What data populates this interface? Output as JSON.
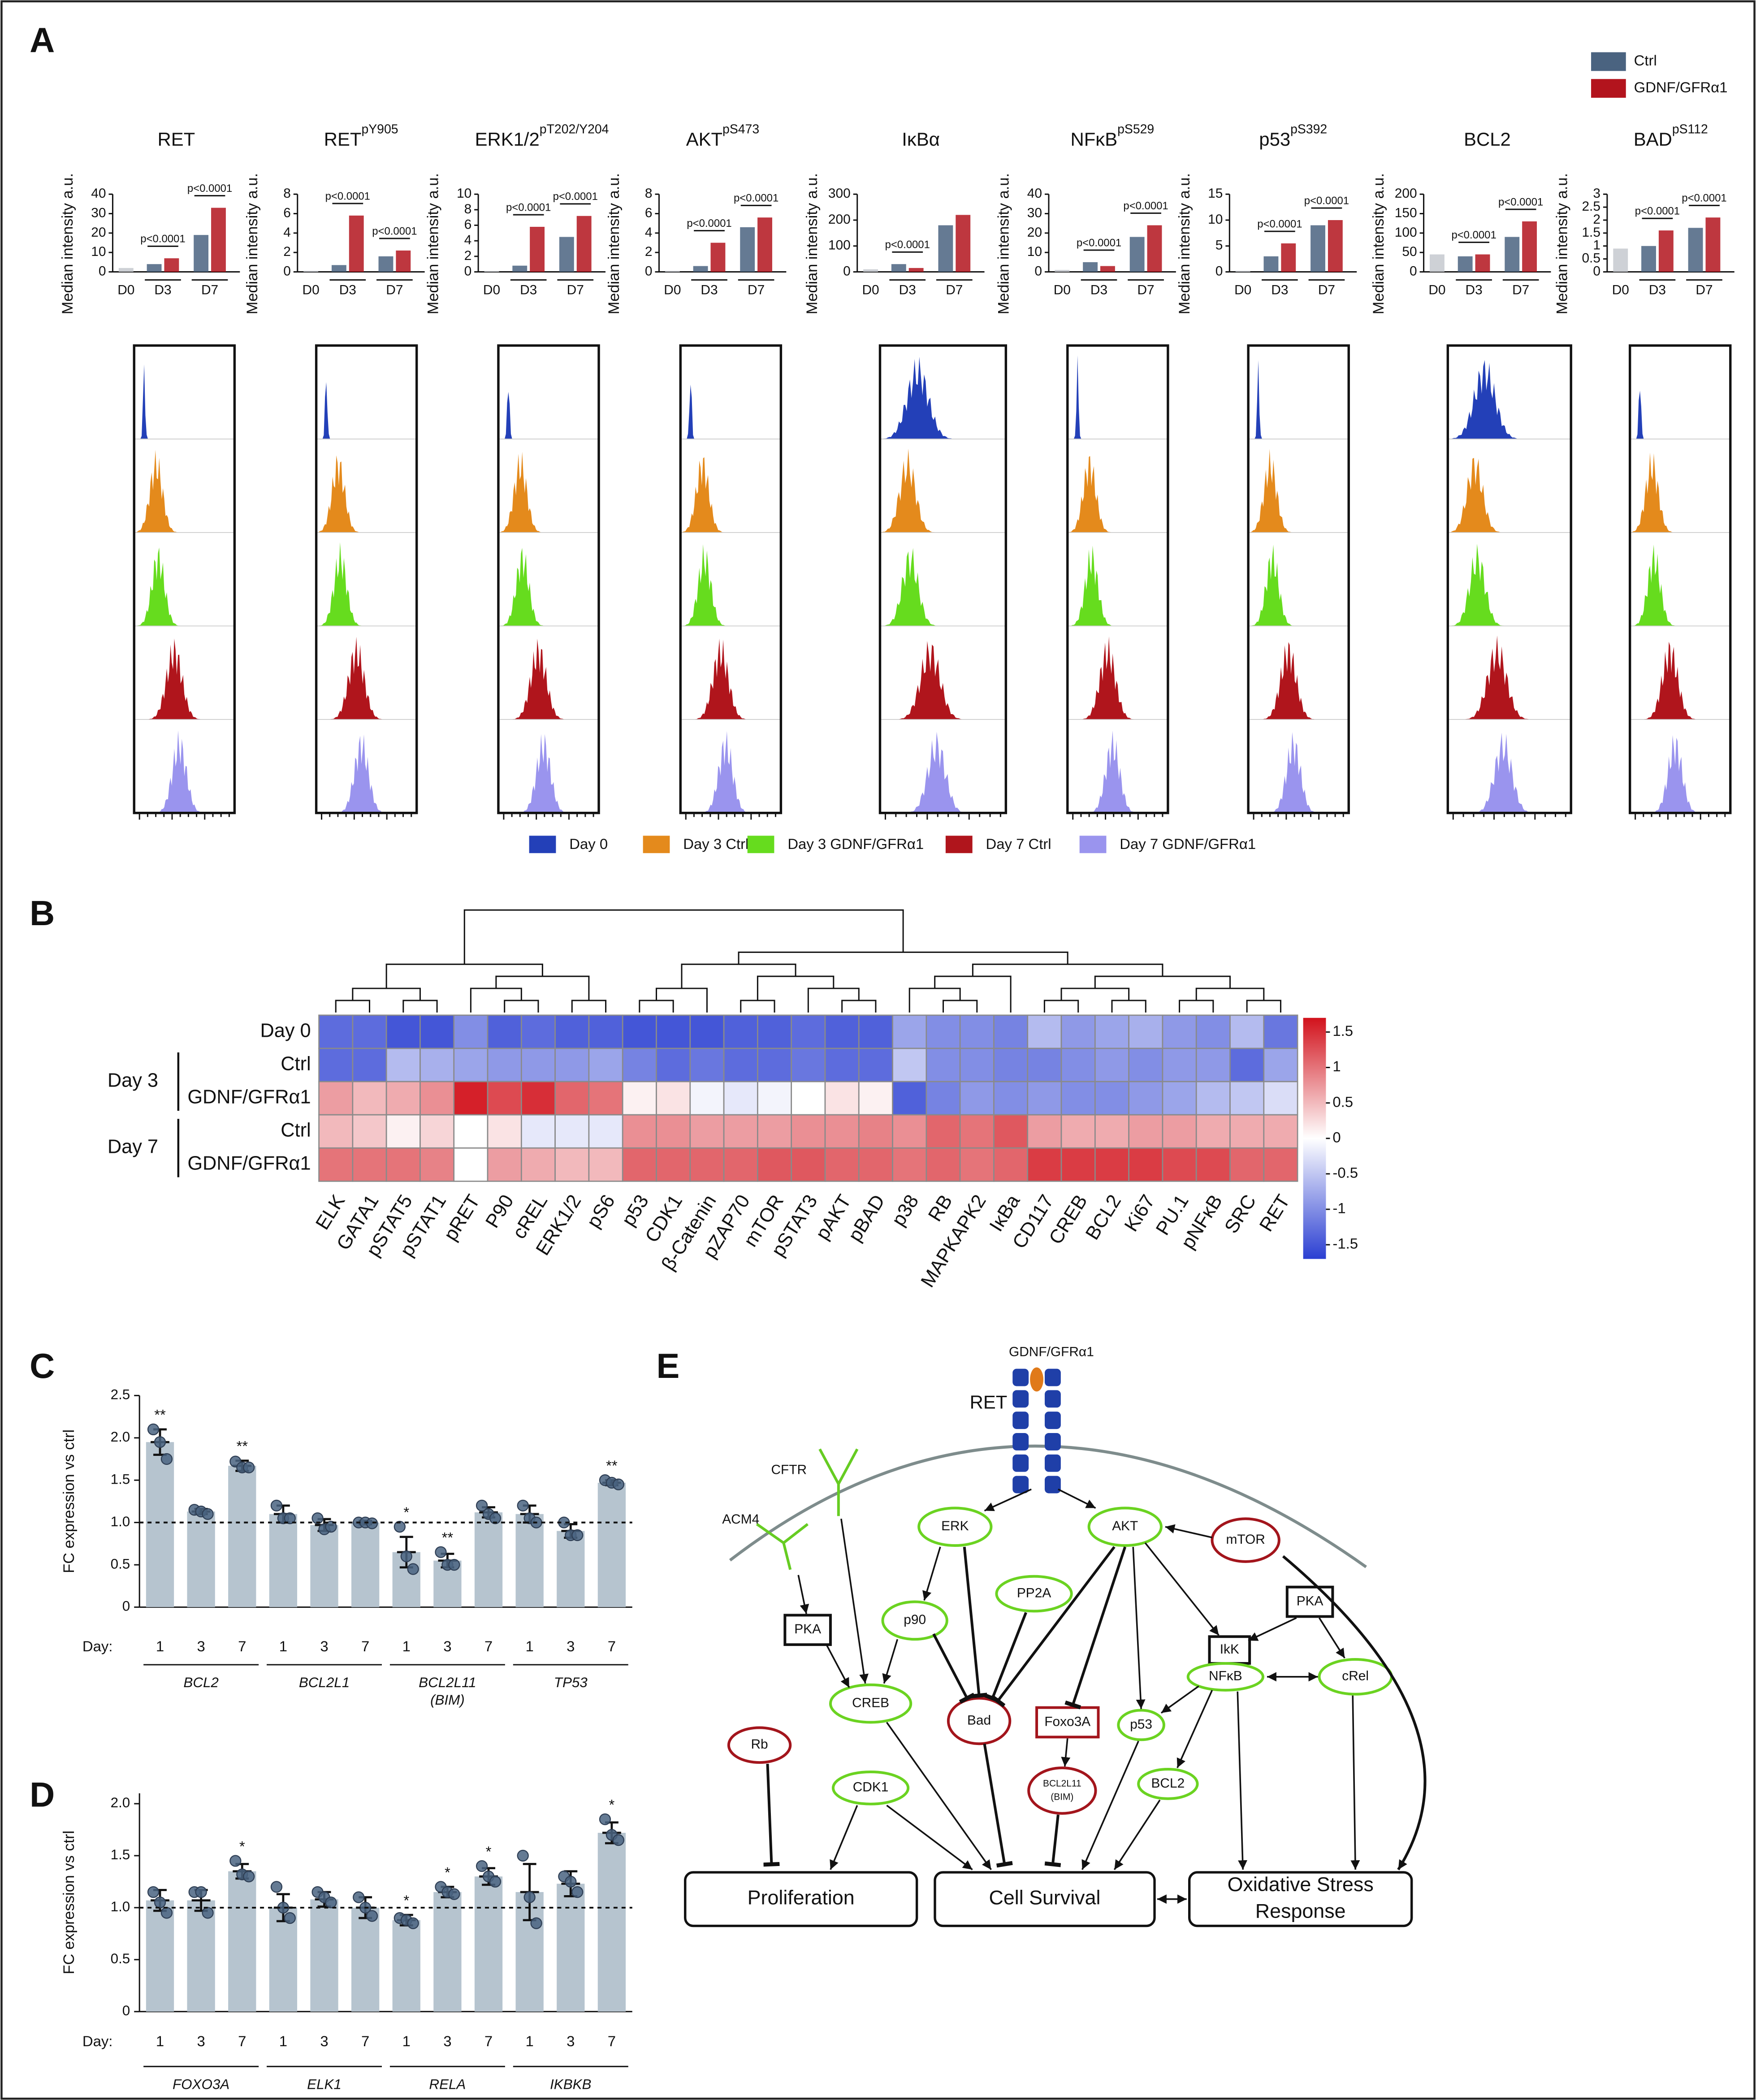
{
  "panel_labels": [
    "A",
    "B",
    "C",
    "D",
    "E"
  ],
  "legend_a": [
    {
      "name": "Ctrl",
      "color": "#4a6380"
    },
    {
      "name": "GDNF/GFRα1",
      "color": "#b3141d"
    }
  ],
  "histogram_legend": [
    {
      "name": "Day 0",
      "color": "#2340b8"
    },
    {
      "name": "Day 3 Ctrl",
      "color": "#e48a1c"
    },
    {
      "name": "Day 3 GDNF/GFRα1",
      "color": "#66dc1e"
    },
    {
      "name": "Day 7 Ctrl",
      "color": "#b0151c"
    },
    {
      "name": "Day 7 GDNF/GFRα1",
      "color": "#9a94ee"
    }
  ],
  "chart_data": [
    {
      "type": "grouped_bar",
      "title": "RET",
      "ylabel": "Median intensity a.u.",
      "categories": [
        "D0",
        "D3",
        "D7"
      ],
      "d0_color": "#c5c9cf",
      "series": [
        {
          "color": "#4a6380",
          "values": [
            2,
            4,
            19
          ]
        },
        {
          "color": "#b3141d",
          "values": [
            null,
            7,
            33
          ]
        }
      ],
      "ylim": [
        0,
        40
      ],
      "yticks": [
        0,
        10,
        20,
        30,
        40
      ],
      "annotations": [
        "p<0.0001",
        "p<0.0001"
      ]
    },
    {
      "type": "grouped_bar",
      "title": "RET",
      "title_sup": "pY905",
      "ylabel": "Median intensity a.u.",
      "categories": [
        "D0",
        "D3",
        "D7"
      ],
      "d0_color": "#c5c9cf",
      "series": [
        {
          "color": "#4a6380",
          "values": [
            0.1,
            0.7,
            1.6
          ]
        },
        {
          "color": "#b3141d",
          "values": [
            null,
            5.8,
            2.2
          ]
        }
      ],
      "ylim": [
        0,
        8
      ],
      "yticks": [
        0,
        2,
        4,
        6,
        8
      ],
      "annotations": [
        "p<0.0001",
        "p<0.0001"
      ]
    },
    {
      "type": "grouped_bar",
      "title": "ERK1/2",
      "title_sup": "pT202/Y204",
      "ylabel": "Median intensity a.u.",
      "categories": [
        "D0",
        "D3",
        "D7"
      ],
      "d0_color": "#c5c9cf",
      "series": [
        {
          "color": "#4a6380",
          "values": [
            0.1,
            0.8,
            4.5
          ]
        },
        {
          "color": "#b3141d",
          "values": [
            null,
            5.8,
            7.2
          ]
        }
      ],
      "ylim": [
        0,
        10
      ],
      "yticks": [
        0,
        2,
        4,
        6,
        8,
        10
      ],
      "annotations": [
        "p<0.0001",
        "p<0.0001"
      ]
    },
    {
      "type": "grouped_bar",
      "title": "AKT",
      "title_sup": "pS473",
      "ylabel": "Median intensity a.u.",
      "categories": [
        "D0",
        "D3",
        "D7"
      ],
      "d0_color": "#c5c9cf",
      "series": [
        {
          "color": "#4a6380",
          "values": [
            0.1,
            0.6,
            4.6
          ]
        },
        {
          "color": "#b3141d",
          "values": [
            null,
            3.0,
            5.6
          ]
        }
      ],
      "ylim": [
        0,
        8
      ],
      "yticks": [
        0,
        2,
        4,
        6,
        8
      ],
      "annotations": [
        "p<0.0001",
        "p<0.0001"
      ]
    },
    {
      "type": "grouped_bar",
      "title": "IκBα",
      "ylabel": "Median intensity a.u.",
      "categories": [
        "D0",
        "D3",
        "D7"
      ],
      "d0_color": "#c5c9cf",
      "series": [
        {
          "color": "#4a6380",
          "values": [
            10,
            30,
            180
          ]
        },
        {
          "color": "#b3141d",
          "values": [
            null,
            15,
            220
          ]
        }
      ],
      "ylim": [
        0,
        300
      ],
      "yticks": [
        0,
        100,
        200,
        300
      ],
      "annotations": [
        "p<0.0001"
      ]
    },
    {
      "type": "grouped_bar",
      "title": "NFκB",
      "title_sup": "pS529",
      "ylabel": "Median intensity a.u.",
      "categories": [
        "D0",
        "D3",
        "D7"
      ],
      "d0_color": "#c5c9cf",
      "series": [
        {
          "color": "#4a6380",
          "values": [
            1,
            5,
            18
          ]
        },
        {
          "color": "#b3141d",
          "values": [
            null,
            3,
            24
          ]
        }
      ],
      "ylim": [
        0,
        40
      ],
      "yticks": [
        0,
        10,
        20,
        30,
        40
      ],
      "annotations": [
        "p<0.0001",
        "p<0.0001"
      ]
    },
    {
      "type": "grouped_bar",
      "title": "p53",
      "title_sup": "pS392",
      "ylabel": "Median intensity a.u.",
      "categories": [
        "D0",
        "D3",
        "D7"
      ],
      "d0_color": "#c5c9cf",
      "series": [
        {
          "color": "#4a6380",
          "values": [
            0.2,
            3,
            9
          ]
        },
        {
          "color": "#b3141d",
          "values": [
            null,
            5.5,
            10
          ]
        }
      ],
      "ylim": [
        0,
        15
      ],
      "yticks": [
        0,
        5,
        10,
        15
      ],
      "annotations": [
        "p<0.0001",
        "p<0.0001"
      ]
    },
    {
      "type": "grouped_bar",
      "title": "BCL2",
      "ylabel": "Median intensity a.u.",
      "categories": [
        "D0",
        "D3",
        "D7"
      ],
      "d0_color": "#c5c9cf",
      "series": [
        {
          "color": "#4a6380",
          "values": [
            45,
            40,
            90
          ]
        },
        {
          "color": "#b3141d",
          "values": [
            null,
            45,
            130
          ]
        }
      ],
      "ylim": [
        0,
        200
      ],
      "yticks": [
        0,
        50,
        100,
        150,
        200
      ],
      "annotations": [
        "p<0.0001",
        "p<0.0001"
      ]
    },
    {
      "type": "grouped_bar",
      "title": "BAD",
      "title_sup": "pS112",
      "ylabel": "Median intensity a.u.",
      "categories": [
        "D0",
        "D3",
        "D7"
      ],
      "d0_color": "#c5c9cf",
      "series": [
        {
          "color": "#4a6380",
          "values": [
            0.9,
            1.0,
            1.7
          ]
        },
        {
          "color": "#b3141d",
          "values": [
            null,
            1.6,
            2.1
          ]
        }
      ],
      "ylim": [
        0,
        3
      ],
      "yticks": [
        0,
        0.5,
        1,
        1.5,
        2,
        2.5,
        3
      ],
      "annotations": [
        "p<0.0001",
        "p<0.0001"
      ]
    },
    {
      "type": "heatmap",
      "rows": [
        "Day 0",
        "Ctrl",
        "GDNF/GFRα1",
        "Ctrl",
        "GDNF/GFRα1"
      ],
      "row_groups": [
        "Day 3",
        "Day 7"
      ],
      "columns": [
        "ELK",
        "GATA1",
        "pSTAT5",
        "pSTAT1",
        "pRET",
        "P90",
        "cREL",
        "ERK1/2",
        "pS6",
        "p53",
        "CDK1",
        "β-Catenin",
        "pZAP70",
        "mTOR",
        "pSTAT3",
        "pAKT",
        "pBAD",
        "p38",
        "RB",
        "MAPKAPK2",
        "IκBa",
        "CD117",
        "CREB",
        "BCL2",
        "Ki67",
        "PU.1",
        "pNFκB",
        "SRC",
        "RET"
      ],
      "values": [
        [
          -1.3,
          -1.3,
          -1.5,
          -1.5,
          -1.0,
          -1.4,
          -1.3,
          -1.4,
          -1.4,
          -1.5,
          -1.5,
          -1.5,
          -1.4,
          -1.4,
          -1.3,
          -1.4,
          -1.4,
          -0.8,
          -1.0,
          -1.0,
          -1.1,
          -0.6,
          -0.9,
          -0.8,
          -0.7,
          -0.9,
          -1.0,
          -0.6,
          -1.2
        ],
        [
          -1.3,
          -1.3,
          -0.6,
          -0.7,
          -0.8,
          -0.9,
          -0.9,
          -0.9,
          -0.8,
          -1.1,
          -1.3,
          -1.2,
          -1.3,
          -1.3,
          -1.2,
          -1.3,
          -1.3,
          -0.5,
          -1.0,
          -1.0,
          -1.1,
          -1.1,
          -1.0,
          -0.9,
          -1.0,
          -0.9,
          -0.9,
          -1.3,
          -0.8
        ],
        [
          0.7,
          0.5,
          0.6,
          0.8,
          1.6,
          1.3,
          1.5,
          1.1,
          1.0,
          0.1,
          0.2,
          -0.1,
          -0.2,
          -0.1,
          0.0,
          0.2,
          0.1,
          -1.4,
          -1.1,
          -0.9,
          -1.0,
          -0.9,
          -1.0,
          -1.0,
          -0.9,
          -0.8,
          -0.6,
          -0.5,
          -0.3
        ],
        [
          0.5,
          0.4,
          0.1,
          0.3,
          0.0,
          0.2,
          -0.2,
          -0.2,
          -0.2,
          0.8,
          0.8,
          0.7,
          0.7,
          0.7,
          0.8,
          0.8,
          0.9,
          0.8,
          1.1,
          1.0,
          1.2,
          0.7,
          0.6,
          0.6,
          0.7,
          0.7,
          0.6,
          0.6,
          0.6
        ],
        [
          1.0,
          1.0,
          1.0,
          0.9,
          0.0,
          0.7,
          0.6,
          0.5,
          0.5,
          1.1,
          1.1,
          1.1,
          1.1,
          1.2,
          1.2,
          1.1,
          1.1,
          1.0,
          1.1,
          1.0,
          1.1,
          1.4,
          1.4,
          1.4,
          1.4,
          1.3,
          1.3,
          1.1,
          1.1
        ]
      ],
      "clim": [
        -1.7,
        1.7
      ],
      "cticks": [
        -1.5,
        -1,
        -0.5,
        0,
        0.5,
        1,
        1.5
      ],
      "cmap": [
        "#2b3fd2",
        "#ffffff",
        "#d2121c"
      ]
    },
    {
      "type": "bar",
      "ylabel": "FC expression vs ctrl",
      "x_label": "Day:",
      "color": "#b6c4cf",
      "point_color": "#4a6481",
      "categories": [
        "1",
        "3",
        "7",
        "1",
        "3",
        "7",
        "1",
        "3",
        "7",
        "1",
        "3",
        "7"
      ],
      "groups": [
        "BCL2",
        "BCL2L1",
        "BCL2L11",
        "TP53"
      ],
      "group_sublabels": [
        null,
        null,
        "(BIM)",
        null
      ],
      "values": [
        1.95,
        1.13,
        1.67,
        1.1,
        0.97,
        1.0,
        0.65,
        0.55,
        1.12,
        1.1,
        0.9,
        1.47
      ],
      "errors": [
        0.15,
        0.03,
        0.06,
        0.1,
        0.07,
        0.02,
        0.18,
        0.08,
        0.06,
        0.1,
        0.08,
        0.03
      ],
      "points": [
        [
          2.1,
          1.95,
          1.75
        ],
        [
          1.15,
          1.13,
          1.1
        ],
        [
          1.72,
          1.65,
          1.65
        ],
        [
          1.2,
          1.05,
          1.05
        ],
        [
          1.05,
          0.92,
          0.95
        ],
        [
          1.0,
          1.0,
          0.99
        ],
        [
          0.95,
          0.6,
          0.45
        ],
        [
          0.65,
          0.5,
          0.5
        ],
        [
          1.2,
          1.1,
          1.05
        ],
        [
          1.2,
          1.05,
          1.0
        ],
        [
          1.0,
          0.85,
          0.85
        ],
        [
          1.5,
          1.47,
          1.45
        ]
      ],
      "annotations": [
        "**",
        null,
        "**",
        null,
        null,
        null,
        "*",
        "**",
        null,
        null,
        null,
        "**"
      ],
      "ylim": [
        0,
        2.5
      ],
      "yticks": [
        0,
        0.5,
        {
          "value": 1,
          "label": "1.0"
        },
        1.5,
        {
          "value": 2,
          "label": "2.0"
        },
        2.5
      ],
      "hline": 1
    },
    {
      "type": "bar",
      "ylabel": "FC expression vs ctrl",
      "x_label": "Day:",
      "color": "#b6c4cf",
      "point_color": "#4a6481",
      "categories": [
        "1",
        "3",
        "7",
        "1",
        "3",
        "7",
        "1",
        "3",
        "7",
        "1",
        "3",
        "7"
      ],
      "groups": [
        "FOXO3A",
        "ELK1",
        "RELA",
        "IKBKB"
      ],
      "values": [
        1.07,
        1.07,
        1.35,
        1.0,
        1.08,
        1.0,
        0.88,
        1.15,
        1.3,
        1.15,
        1.23,
        1.72
      ],
      "errors": [
        0.1,
        0.1,
        0.07,
        0.13,
        0.07,
        0.1,
        0.05,
        0.05,
        0.08,
        0.27,
        0.12,
        0.1
      ],
      "points": [
        [
          1.15,
          1.05,
          0.95
        ],
        [
          1.15,
          1.15,
          0.95
        ],
        [
          1.45,
          1.32,
          1.3
        ],
        [
          1.2,
          1.0,
          0.9
        ],
        [
          1.15,
          1.1,
          1.05
        ],
        [
          1.1,
          1.0,
          0.92
        ],
        [
          0.9,
          0.88,
          0.85
        ],
        [
          1.2,
          1.15,
          1.13
        ],
        [
          1.4,
          1.3,
          1.25
        ],
        [
          1.5,
          1.1,
          0.85
        ],
        [
          1.3,
          1.25,
          1.15
        ],
        [
          1.85,
          1.7,
          1.65
        ]
      ],
      "annotations": [
        null,
        null,
        "*",
        null,
        null,
        null,
        "*",
        "*",
        "*",
        null,
        null,
        "*"
      ],
      "ylim": [
        0,
        2.1
      ],
      "yticks": [
        0,
        0.5,
        {
          "value": 1,
          "label": "1.0"
        },
        1.5,
        {
          "value": 2,
          "label": "2.0"
        }
      ],
      "hline": 1
    }
  ],
  "diagram": {
    "ligand": "GDNF/GFRα1",
    "receptor": "RET",
    "nodes": [
      {
        "label": "CFTR"
      },
      {
        "label": "ACM4"
      },
      {
        "label": "ERK"
      },
      {
        "label": "AKT"
      },
      {
        "label": "mTOR"
      },
      {
        "label": "PP2A"
      },
      {
        "label": "p90"
      },
      {
        "label": "PKA"
      },
      {
        "label": "PKA"
      },
      {
        "label": "IkK"
      },
      {
        "label": "NFκB"
      },
      {
        "label": "cRel"
      },
      {
        "label": "CREB"
      },
      {
        "label": "Bad"
      },
      {
        "label": "Foxo3A"
      },
      {
        "label": "BCL2L11",
        "label2": "(BIM)"
      },
      {
        "label": "p53"
      },
      {
        "label": "BCL2"
      },
      {
        "label": "Rb"
      },
      {
        "label": "CDK1"
      },
      {
        "label": "Proliferation"
      },
      {
        "label": "Cell Survival"
      },
      {
        "label": "Oxidative Stress",
        "label2": "Response"
      }
    ]
  }
}
